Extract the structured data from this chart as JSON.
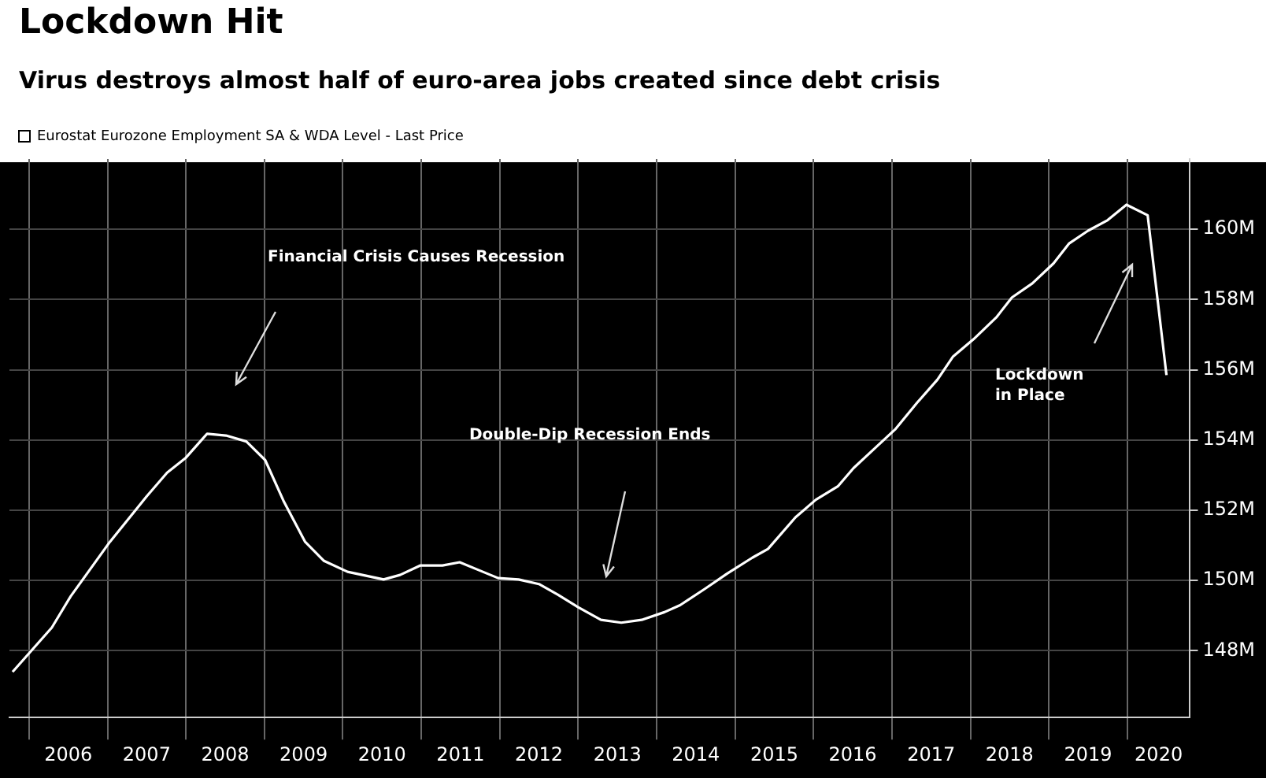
{
  "chart_data": {
    "type": "line",
    "title": "Lockdown Hit",
    "subtitle": "Virus destroys almost half of euro-area jobs created since debt crisis",
    "x": [
      2005.79,
      2006.29,
      2006.53,
      2007.03,
      2007.5,
      2007.76,
      2008.0,
      2008.27,
      2008.51,
      2008.77,
      2009.01,
      2009.25,
      2009.52,
      2009.76,
      2010.06,
      2010.52,
      2010.73,
      2010.99,
      2011.27,
      2011.49,
      2011.73,
      2011.98,
      2012.24,
      2012.5,
      2012.74,
      2013.0,
      2013.29,
      2013.55,
      2013.81,
      2014.1,
      2014.3,
      2014.62,
      2014.9,
      2015.22,
      2015.42,
      2015.77,
      2016.03,
      2016.31,
      2016.51,
      2016.77,
      2017.04,
      2017.32,
      2017.58,
      2017.78,
      2018.04,
      2018.33,
      2018.53,
      2018.79,
      2019.06,
      2019.26,
      2019.5,
      2019.75,
      2019.99,
      2020.26,
      2020.5
    ],
    "series": [
      {
        "name": "Eurostat Eurozone Employment SA & WDA Level - Last Price",
        "color": "#ffffff",
        "values": [
          147.4,
          148.66,
          149.55,
          151.1,
          152.4,
          153.07,
          153.5,
          154.18,
          154.13,
          153.96,
          153.43,
          152.24,
          151.1,
          150.56,
          150.25,
          150.03,
          150.16,
          150.43,
          150.43,
          150.52,
          150.3,
          150.07,
          150.03,
          149.9,
          149.6,
          149.24,
          148.88,
          148.8,
          148.88,
          149.1,
          149.3,
          149.77,
          150.2,
          150.65,
          150.9,
          151.8,
          152.3,
          152.68,
          153.2,
          153.74,
          154.3,
          155.06,
          155.72,
          156.38,
          156.87,
          157.49,
          158.06,
          158.46,
          159.03,
          159.6,
          159.96,
          160.26,
          160.7,
          160.4,
          155.85
        ]
      }
    ],
    "xlim": [
      2005.75,
      2020.8
    ],
    "ylim": [
      146.1,
      162
    ],
    "xticks": [
      {
        "value": 2006,
        "label": null
      },
      {
        "value": 2006.5,
        "label": "2006"
      },
      {
        "value": 2007,
        "label": null
      },
      {
        "value": 2007.5,
        "label": "2007"
      },
      {
        "value": 2008,
        "label": null
      },
      {
        "value": 2008.5,
        "label": "2008"
      },
      {
        "value": 2009,
        "label": null
      },
      {
        "value": 2009.5,
        "label": "2009"
      },
      {
        "value": 2010,
        "label": null
      },
      {
        "value": 2010.5,
        "label": "2010"
      },
      {
        "value": 2011,
        "label": null
      },
      {
        "value": 2011.5,
        "label": "2011"
      },
      {
        "value": 2012,
        "label": null
      },
      {
        "value": 2012.5,
        "label": "2012"
      },
      {
        "value": 2013,
        "label": null
      },
      {
        "value": 2013.5,
        "label": "2013"
      },
      {
        "value": 2014,
        "label": null
      },
      {
        "value": 2014.5,
        "label": "2014"
      },
      {
        "value": 2015,
        "label": null
      },
      {
        "value": 2015.5,
        "label": "2015"
      },
      {
        "value": 2016,
        "label": null
      },
      {
        "value": 2016.5,
        "label": "2016"
      },
      {
        "value": 2017,
        "label": null
      },
      {
        "value": 2017.5,
        "label": "2017"
      },
      {
        "value": 2018,
        "label": null
      },
      {
        "value": 2018.5,
        "label": "2018"
      },
      {
        "value": 2019,
        "label": null
      },
      {
        "value": 2019.5,
        "label": "2019"
      },
      {
        "value": 2020,
        "label": null
      },
      {
        "value": 2020.4,
        "label": "2020"
      }
    ],
    "yticks": [
      {
        "value": 148,
        "label": "148M"
      },
      {
        "value": 150,
        "label": "150M"
      },
      {
        "value": 152,
        "label": "152M"
      },
      {
        "value": 154,
        "label": "154M"
      },
      {
        "value": 156,
        "label": "156M"
      },
      {
        "value": 158,
        "label": "158M"
      },
      {
        "value": 160,
        "label": "160M"
      }
    ],
    "annotations": [
      "Financial Crisis Causes Recession",
      "Double-Dip Recession Ends",
      "Lockdown\nin Place"
    ],
    "grid": true,
    "legend": "top left",
    "marker": "none"
  }
}
